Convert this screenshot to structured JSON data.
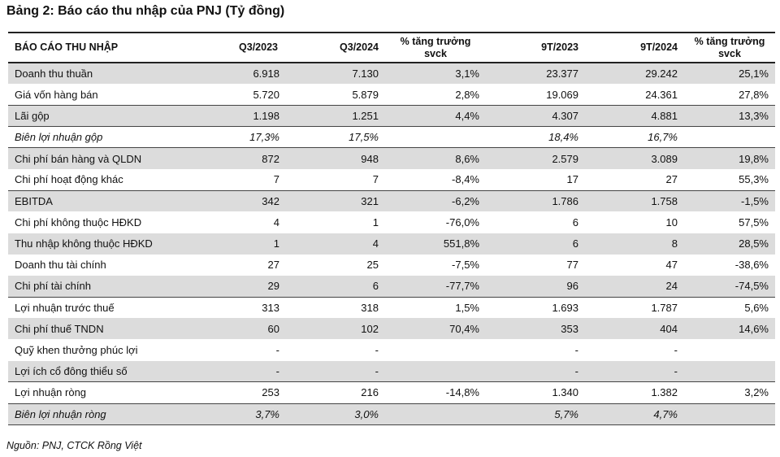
{
  "title": "Bảng 2: Báo cáo thu nhập của PNJ (Tỷ đồng)",
  "headers": [
    "BÁO CÁO THU NHẬP",
    "Q3/2023",
    "Q3/2024",
    "% tăng trưởng svck",
    "9T/2023",
    "9T/2024",
    "% tăng trưởng svck"
  ],
  "rows": [
    {
      "label": "Doanh thu thuần",
      "cells": [
        "6.918",
        "7.130",
        "3,1%",
        "23.377",
        "29.242",
        "25,1%"
      ]
    },
    {
      "label": "Giá vốn hàng bán",
      "cells": [
        "5.720",
        "5.879",
        "2,8%",
        "19.069",
        "24.361",
        "27,8%"
      ]
    },
    {
      "label": "Lãi gộp",
      "cells": [
        "1.198",
        "1.251",
        "4,4%",
        "4.307",
        "4.881",
        "13,3%"
      ]
    },
    {
      "label": "Biên lợi nhuận gộp",
      "cells": [
        "17,3%",
        "17,5%",
        "",
        "18,4%",
        "16,7%",
        ""
      ]
    },
    {
      "label": "Chi phí bán hàng và QLDN",
      "cells": [
        "872",
        "948",
        "8,6%",
        "2.579",
        "3.089",
        "19,8%"
      ]
    },
    {
      "label": "Chi phí hoạt động khác",
      "cells": [
        "7",
        "7",
        "-8,4%",
        "17",
        "27",
        "55,3%"
      ]
    },
    {
      "label": "EBITDA",
      "cells": [
        "342",
        "321",
        "-6,2%",
        "1.786",
        "1.758",
        "-1,5%"
      ]
    },
    {
      "label": "Chi phí không thuộc HĐKD",
      "cells": [
        "4",
        "1",
        "-76,0%",
        "6",
        "10",
        "57,5%"
      ]
    },
    {
      "label": "Thu nhập không thuộc HĐKD",
      "cells": [
        "1",
        "4",
        "551,8%",
        "6",
        "8",
        "28,5%"
      ]
    },
    {
      "label": "Doanh thu tài chính",
      "cells": [
        "27",
        "25",
        "-7,5%",
        "77",
        "47",
        "-38,6%"
      ]
    },
    {
      "label": "Chi phí tài chính",
      "cells": [
        "29",
        "6",
        "-77,7%",
        "96",
        "24",
        "-74,5%"
      ]
    },
    {
      "label": "Lợi nhuận trước thuế",
      "cells": [
        "313",
        "318",
        "1,5%",
        "1.693",
        "1.787",
        "5,6%"
      ]
    },
    {
      "label": "Chi phí thuế TNDN",
      "cells": [
        "60",
        "102",
        "70,4%",
        "353",
        "404",
        "14,6%"
      ]
    },
    {
      "label": "Quỹ khen thưởng phúc lợi",
      "cells": [
        "-",
        "-",
        "",
        "-",
        "-",
        ""
      ]
    },
    {
      "label": "Lợi ích cổ đông thiểu số",
      "cells": [
        "-",
        "-",
        "",
        "-",
        "-",
        ""
      ]
    },
    {
      "label": "Lợi nhuận ròng",
      "cells": [
        "253",
        "216",
        "-14,8%",
        "1.340",
        "1.382",
        "3,2%"
      ]
    },
    {
      "label": "Biên lợi nhuận ròng",
      "cells": [
        "3,7%",
        "3,0%",
        "",
        "5,7%",
        "4,7%",
        ""
      ]
    }
  ],
  "source": "Nguồn: PNJ, CTCK Rồng Việt"
}
